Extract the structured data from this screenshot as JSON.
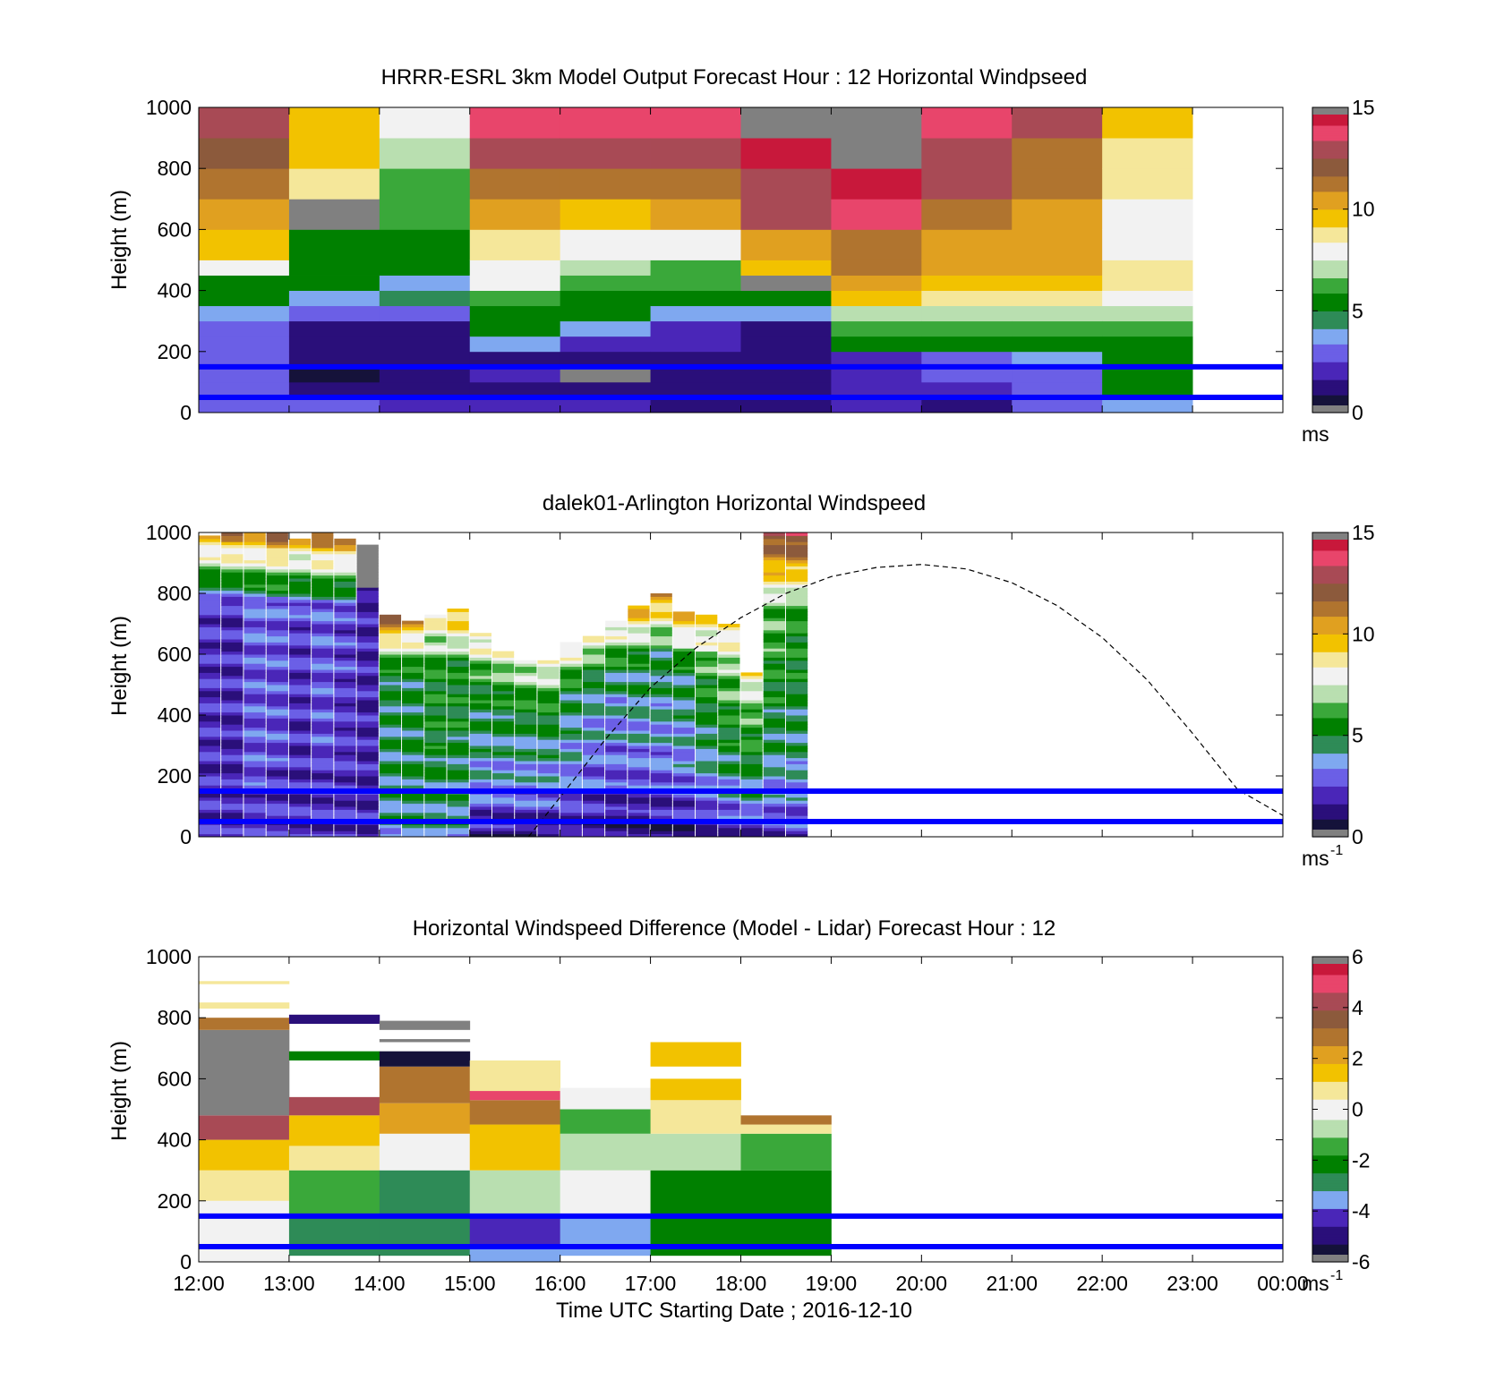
{
  "colors": {
    "ref_line": "#0000ff",
    "dash_curve": "#000000",
    "nodata": "#808080",
    "speed_cmap": [
      "#808080",
      "#15123a",
      "#2a0f7a",
      "#4a26b8",
      "#6b5fe6",
      "#7fa8f0",
      "#2e8b57",
      "#008000",
      "#3aa83a",
      "#b9dfb0",
      "#f2f2f2",
      "#f5e79a",
      "#f2c200",
      "#e0a020",
      "#b0742f",
      "#8c5a3c",
      "#a84a55",
      "#e8456b",
      "#c8183b",
      "#808080"
    ],
    "diff_cmap": [
      "#808080",
      "#15123a",
      "#2a0f7a",
      "#4a26b8",
      "#7fa8f0",
      "#2e8b57",
      "#008000",
      "#3aa83a",
      "#b9dfb0",
      "#f2f2f2",
      "#f5e79a",
      "#f2c200",
      "#e0a020",
      "#b0742f",
      "#8c5a3c",
      "#a84a55",
      "#e8456b",
      "#c8183b",
      "#808080"
    ]
  },
  "chart_data": [
    {
      "id": "model",
      "type": "heatmap",
      "title": "HRRR-ESRL 3km Model Output   Forecast Hour : 12 Horizontal Windpseed",
      "ylabel": "Height (m)",
      "xlim": [
        12,
        24
      ],
      "ylim": [
        0,
        1000
      ],
      "yticks": [
        "0",
        "200",
        "400",
        "600",
        "800",
        "1000"
      ],
      "colorbar": {
        "range": [
          0,
          15
        ],
        "ticks": [
          "0",
          "5",
          "10",
          "15"
        ],
        "unit": "ms"
      },
      "ref_lines_m": [
        150,
        50
      ],
      "x_start": [
        12,
        13,
        14,
        15,
        16,
        17,
        18,
        19,
        20,
        21,
        22
      ],
      "y_bottom": [
        0,
        50,
        100,
        150,
        200,
        250,
        300,
        350,
        400,
        450,
        500,
        600,
        700,
        800,
        900
      ],
      "values": [
        [
          3.0,
          2.5,
          2.0,
          2.2,
          1.8,
          1.5,
          1.2,
          2.0,
          1.5,
          3.0,
          4.0
        ],
        [
          3.2,
          1.0,
          1.2,
          1.5,
          1.5,
          1.3,
          1.3,
          1.7,
          2.0,
          2.5,
          5.0
        ],
        [
          3.0,
          0.8,
          0.9,
          1.8,
          0,
          1.4,
          1.5,
          2.2,
          2.5,
          3.0,
          5.5
        ],
        [
          2.8,
          0.9,
          1.0,
          1.5,
          1.6,
          1.5,
          1.6,
          2.0,
          3.0,
          3.5,
          5.5
        ],
        [
          2.5,
          1.0,
          1.1,
          4.0,
          2.0,
          1.8,
          1.0,
          5.0,
          5.0,
          5.0,
          5.0
        ],
        [
          3.0,
          1.3,
          1.5,
          5.5,
          4.0,
          2.0,
          1.5,
          6.0,
          6.0,
          6.0,
          6.0
        ],
        [
          3.5,
          2.5,
          2.5,
          5.0,
          5.0,
          4.0,
          3.8,
          7.0,
          7.2,
          7.0,
          7.0
        ],
        [
          5.0,
          4.0,
          4.5,
          6.5,
          5.0,
          5.0,
          5.5,
          9.5,
          9.0,
          9.0,
          7.5
        ],
        [
          5.5,
          5.0,
          4.0,
          7.5,
          6.5,
          6.0,
          0,
          10.0,
          9.5,
          9.5,
          8.5
        ],
        [
          7.5,
          5.0,
          5.0,
          8.0,
          7.0,
          6.5,
          9.5,
          11.0,
          10.5,
          10.5,
          8.5
        ],
        [
          9.5,
          5.5,
          5.0,
          9.0,
          8.0,
          8.0,
          10.0,
          11.5,
          10.5,
          10.5,
          8.2
        ],
        [
          10.5,
          0,
          6.0,
          10.0,
          9.5,
          10.0,
          12.5,
          13.5,
          11.5,
          10.5,
          8.0
        ],
        [
          11.5,
          9.0,
          6.5,
          11.0,
          11.0,
          11.0,
          13.0,
          14.5,
          12.5,
          11.5,
          8.5
        ],
        [
          12.0,
          9.5,
          7.0,
          12.5,
          12.5,
          12.5,
          15.0,
          0,
          13.0,
          11.5,
          9.0
        ],
        [
          12.5,
          9.5,
          7.8,
          13.5,
          13.5,
          13.5,
          0,
          0,
          14.0,
          12.5,
          9.5
        ]
      ]
    },
    {
      "id": "lidar",
      "type": "heatmap",
      "title": "dalek01-Arlington  Horizontal Windspeed",
      "ylabel": "Height (m)",
      "xlim": [
        12,
        24
      ],
      "ylim": [
        0,
        1000
      ],
      "yticks": [
        "0",
        "200",
        "400",
        "600",
        "800",
        "1000"
      ],
      "colorbar": {
        "range": [
          0,
          15
        ],
        "ticks": [
          "0",
          "5",
          "10",
          "15"
        ],
        "unit": "ms",
        "unit_exp": "-1"
      },
      "ref_lines_m": [
        150,
        50
      ],
      "col_width_h": 0.25,
      "x_start": [
        12.0,
        12.25,
        12.5,
        12.75,
        13.0,
        13.25,
        13.5,
        13.75,
        14.0,
        14.25,
        14.5,
        14.75,
        15.0,
        15.25,
        15.5,
        15.75,
        16.0,
        16.25,
        16.5,
        16.75,
        17.0,
        17.25,
        17.5,
        17.75,
        18.0,
        18.25,
        18.5
      ],
      "top_m": [
        990,
        1000,
        1000,
        1000,
        980,
        1000,
        980,
        960,
        730,
        710,
        730,
        750,
        670,
        610,
        580,
        580,
        640,
        660,
        710,
        760,
        800,
        740,
        730,
        700,
        540,
        1000,
        1000
      ],
      "surface_speed": [
        2.2,
        2.0,
        2.3,
        2.2,
        1.8,
        2.0,
        2.2,
        2.0,
        4.0,
        4.5,
        4.2,
        4.0,
        1.5,
        1.2,
        1.0,
        1.0,
        1.3,
        1.0,
        0.8,
        0.8,
        1.0,
        1.2,
        1.5,
        1.8,
        2.0,
        2.2,
        2.5
      ],
      "mid_speed": [
        2.2,
        2.0,
        3.0,
        2.8,
        2.5,
        3.0,
        2.5,
        2.0,
        5.0,
        5.0,
        5.5,
        5.5,
        5.5,
        5.5,
        5.5,
        5.5,
        5.0,
        4.5,
        4.5,
        5.0,
        5.0,
        5.0,
        6.0,
        6.5,
        6.5,
        6.5,
        6.0
      ],
      "upper_speed": [
        10.0,
        11.5,
        10.5,
        12.0,
        10.0,
        12.0,
        11.0,
        0,
        12.5,
        10.5,
        9.0,
        10.5,
        9.0,
        8.0,
        8.0,
        8.5,
        9.0,
        8.5,
        9.0,
        10.5,
        11.0,
        10.5,
        9.5,
        9.0,
        8.5,
        13.0,
        13.5
      ],
      "boundary_layer_curve": {
        "x_hours": [
          15.65,
          16.0,
          16.5,
          17.0,
          17.5,
          18.0,
          18.5,
          19.0,
          19.5,
          20.0,
          20.5,
          21.0,
          21.5,
          22.0,
          22.5,
          23.0,
          23.5,
          24.0
        ],
        "height_m": [
          0,
          130,
          320,
          490,
          620,
          720,
          800,
          855,
          885,
          895,
          880,
          835,
          760,
          655,
          515,
          340,
          155,
          70
        ]
      }
    },
    {
      "id": "difference",
      "type": "heatmap",
      "title": "Horizontal Windspeed Difference (Model - Lidar) Forecast Hour : 12",
      "ylabel": "Height (m)",
      "xlabel": "Time UTC  Starting Date ; 2016-12-10",
      "xticks": [
        "12:00",
        "13:00",
        "14:00",
        "15:00",
        "16:00",
        "17:00",
        "18:00",
        "19:00",
        "20:00",
        "21:00",
        "22:00",
        "23:00",
        "00:00"
      ],
      "xlim": [
        12,
        24
      ],
      "ylim": [
        0,
        1000
      ],
      "yticks": [
        "0",
        "200",
        "400",
        "600",
        "800",
        "1000"
      ],
      "colorbar": {
        "range": [
          -6,
          6
        ],
        "ticks": [
          "-6",
          "-4",
          "-2",
          "0",
          "2",
          "4",
          "6"
        ],
        "unit": "ms",
        "unit_exp": "-1"
      },
      "ref_lines_m": [
        150,
        50
      ],
      "cells": [
        [
          12,
          0,
          200,
          0.2
        ],
        [
          12,
          200,
          300,
          0.8
        ],
        [
          12,
          300,
          400,
          1.6
        ],
        [
          12,
          400,
          480,
          4.5
        ],
        [
          12,
          480,
          760,
          -6.5
        ],
        [
          12,
          760,
          800,
          3.0
        ],
        [
          12,
          830,
          850,
          0.4
        ],
        [
          12,
          910,
          920,
          1.0
        ],
        [
          13,
          20,
          150,
          -2.8
        ],
        [
          13,
          150,
          300,
          -1.5
        ],
        [
          13,
          300,
          380,
          0.8
        ],
        [
          13,
          380,
          480,
          1.6
        ],
        [
          13,
          480,
          540,
          4.5
        ],
        [
          13,
          660,
          690,
          -2.0
        ],
        [
          13,
          780,
          810,
          -5.0
        ],
        [
          14,
          20,
          150,
          -2.7
        ],
        [
          14,
          150,
          300,
          -3.0
        ],
        [
          14,
          300,
          420,
          0.3
        ],
        [
          14,
          420,
          520,
          2.0
        ],
        [
          14,
          520,
          640,
          3.0
        ],
        [
          14,
          640,
          690,
          -5.5
        ],
        [
          14,
          720,
          730,
          -6.5
        ],
        [
          14,
          760,
          790,
          -6.5
        ],
        [
          15,
          0,
          50,
          -3.5
        ],
        [
          15,
          50,
          150,
          -4.0
        ],
        [
          15,
          150,
          300,
          -1.0
        ],
        [
          15,
          300,
          450,
          1.5
        ],
        [
          15,
          450,
          530,
          3.0
        ],
        [
          15,
          530,
          560,
          4.6
        ],
        [
          15,
          560,
          660,
          1.0
        ],
        [
          16,
          20,
          150,
          -3.8
        ],
        [
          16,
          150,
          300,
          0.0
        ],
        [
          16,
          300,
          420,
          -0.5
        ],
        [
          16,
          420,
          500,
          -1.3
        ],
        [
          16,
          500,
          570,
          -0.3
        ],
        [
          17,
          20,
          150,
          -2.2
        ],
        [
          17,
          150,
          300,
          -2.0
        ],
        [
          17,
          300,
          420,
          -0.5
        ],
        [
          17,
          420,
          530,
          0.8
        ],
        [
          17,
          530,
          600,
          1.5
        ],
        [
          17,
          640,
          720,
          1.2
        ],
        [
          18,
          20,
          150,
          -2.0
        ],
        [
          18,
          150,
          300,
          -2.2
        ],
        [
          18,
          300,
          420,
          -1.2
        ],
        [
          18,
          420,
          450,
          0.5
        ],
        [
          18,
          450,
          480,
          2.8
        ]
      ]
    }
  ]
}
